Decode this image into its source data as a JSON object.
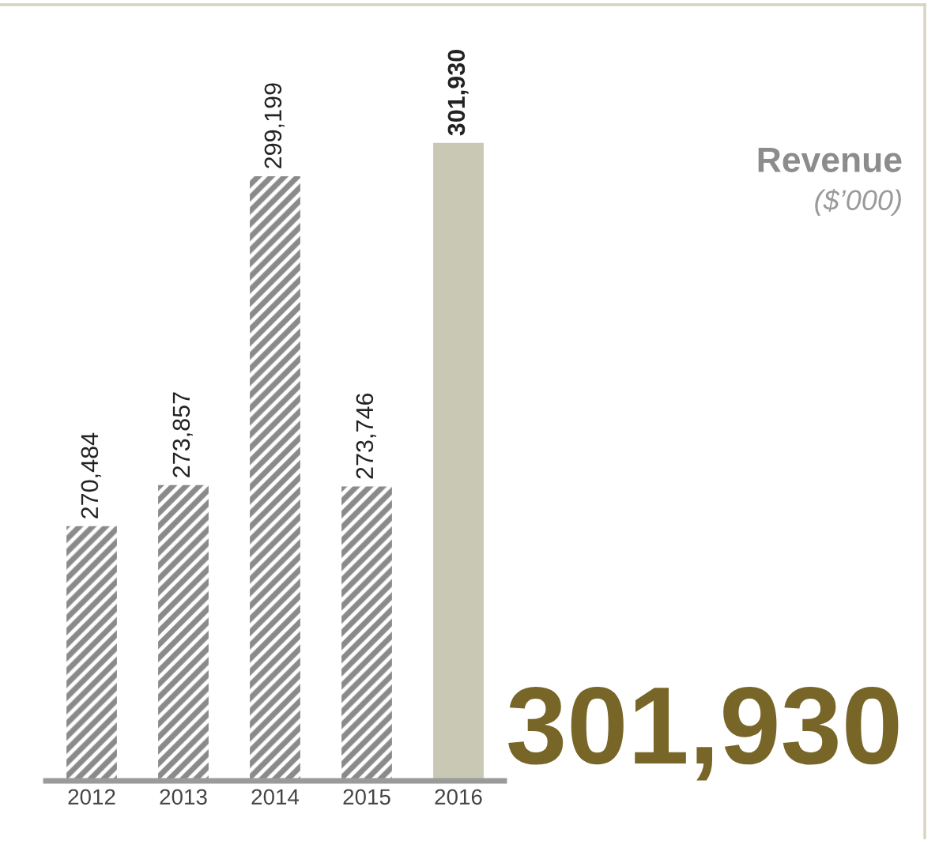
{
  "chart_data": {
    "type": "bar",
    "title": "Revenue",
    "subtitle": "($’000)",
    "annotations": [
      "301,930"
    ],
    "categories": [
      "2012",
      "2013",
      "2014",
      "2015",
      "2016"
    ],
    "series": [
      {
        "color": "#8a8a8a",
        "values": [
          270484,
          273857,
          299199,
          273746,
          null
        ],
        "value_labels": [
          "270,484",
          "273,857",
          "299,199",
          "273,746",
          null
        ]
      },
      {
        "color": "#c9c8b5",
        "values": [
          null,
          null,
          null,
          null,
          301930
        ],
        "value_labels": [
          null,
          null,
          null,
          null,
          "301,930"
        ]
      }
    ],
    "ylim": [
      249600,
      313000
    ],
    "tick_labels": "x",
    "grid": false,
    "legend": false
  }
}
